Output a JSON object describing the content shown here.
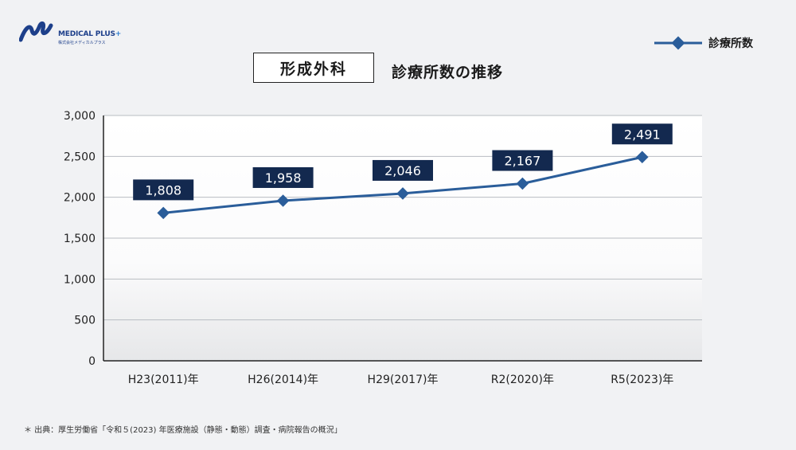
{
  "brand": {
    "name": "MEDICAL PLUS",
    "plus": "+",
    "sub": "株式会社メディカルプラス"
  },
  "title": {
    "boxed": "形成外科",
    "text": "診療所数の推移"
  },
  "legend": {
    "label": "診療所数"
  },
  "footnote": "＊ 出典：厚生労働省「令和５(2023) 年医療施設（静態・動態）調査・病院報告の概況」",
  "colors": {
    "line": "#2a5d9a",
    "label_bg": "#13294f",
    "grid": "#b8bcc2",
    "axis": "#222222"
  },
  "chart_data": {
    "type": "line",
    "categories": [
      "H23(2011)年",
      "H26(2014)年",
      "H29(2017)年",
      "R2(2020)年",
      "R5(2023)年"
    ],
    "series": [
      {
        "name": "診療所数",
        "values": [
          1808,
          1958,
          2046,
          2167,
          2491
        ]
      }
    ],
    "data_labels": [
      "1,808",
      "1,958",
      "2,046",
      "2,167",
      "2,491"
    ],
    "ylim": [
      0,
      3000
    ],
    "yticks": [
      0,
      500,
      1000,
      1500,
      2000,
      2500,
      3000
    ],
    "ytick_labels": [
      "0",
      "500",
      "1,000",
      "1,500",
      "2,000",
      "2,500",
      "3,000"
    ],
    "grid": true,
    "legend_position": "top-right"
  }
}
